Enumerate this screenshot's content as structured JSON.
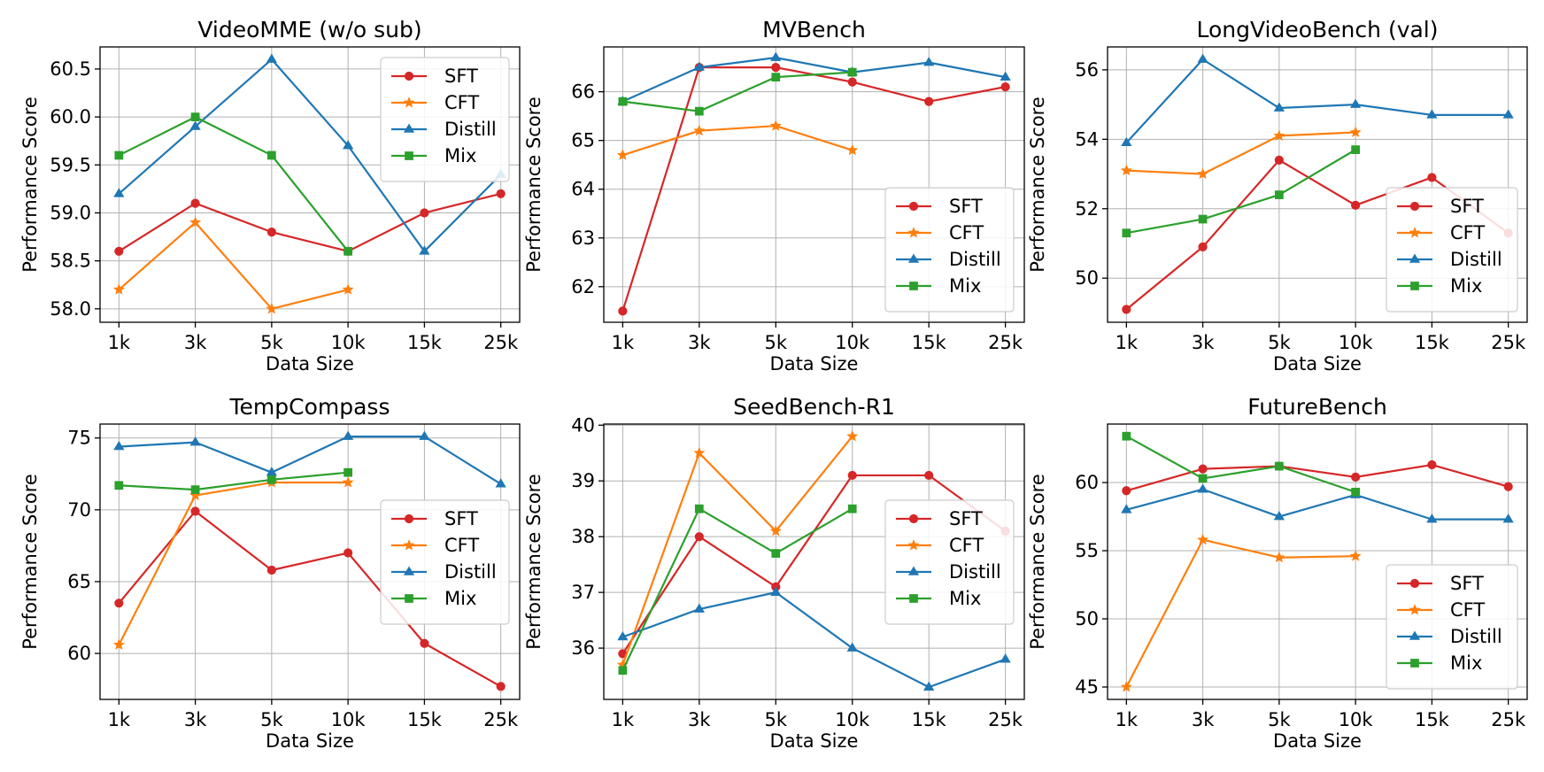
{
  "colors": {
    "SFT": "#d62728",
    "CFT": "#ff7f0e",
    "Distill": "#1f77b4",
    "Mix": "#2ca02c"
  },
  "markers": {
    "SFT": "circle",
    "CFT": "star",
    "Distill": "triangle",
    "Mix": "square"
  },
  "chart_data": [
    {
      "type": "line",
      "title": "VideoMME (w/o sub)",
      "xlabel": "Data Size",
      "ylabel": "Performance Score",
      "categories": [
        "1k",
        "3k",
        "5k",
        "10k",
        "15k",
        "25k"
      ],
      "ylim": [
        57.86,
        60.73
      ],
      "yticks": [
        58.0,
        58.5,
        59.0,
        59.5,
        60.0,
        60.5
      ],
      "ytick_labels": [
        "58.0",
        "58.5",
        "59.0",
        "59.5",
        "60.0",
        "60.5"
      ],
      "legend_position": "top-right",
      "series": [
        {
          "name": "SFT",
          "values": [
            58.6,
            59.1,
            58.8,
            58.6,
            59.0,
            59.2
          ]
        },
        {
          "name": "CFT",
          "values": [
            58.2,
            58.9,
            58.0,
            58.2,
            null,
            null
          ]
        },
        {
          "name": "Distill",
          "values": [
            59.2,
            59.9,
            60.6,
            59.7,
            58.6,
            59.4
          ]
        },
        {
          "name": "Mix",
          "values": [
            59.6,
            60.0,
            59.6,
            58.6,
            null,
            null
          ]
        }
      ]
    },
    {
      "type": "line",
      "title": "MVBench",
      "xlabel": "Data Size",
      "ylabel": "Performance Score",
      "categories": [
        "1k",
        "3k",
        "5k",
        "10k",
        "15k",
        "25k"
      ],
      "ylim": [
        61.27,
        66.92
      ],
      "yticks": [
        62,
        63,
        64,
        65,
        66
      ],
      "ytick_labels": [
        "62",
        "63",
        "64",
        "65",
        "66"
      ],
      "legend_position": "bottom-right",
      "series": [
        {
          "name": "SFT",
          "values": [
            61.5,
            66.5,
            66.5,
            66.2,
            65.8,
            66.1
          ]
        },
        {
          "name": "CFT",
          "values": [
            64.7,
            65.2,
            65.3,
            64.8,
            null,
            null
          ]
        },
        {
          "name": "Distill",
          "values": [
            65.8,
            66.5,
            66.7,
            66.4,
            66.6,
            66.3
          ]
        },
        {
          "name": "Mix",
          "values": [
            65.8,
            65.6,
            66.3,
            66.4,
            null,
            null
          ]
        }
      ]
    },
    {
      "type": "line",
      "title": "LongVideoBench (val)",
      "xlabel": "Data Size",
      "ylabel": "Performance Score",
      "categories": [
        "1k",
        "3k",
        "5k",
        "10k",
        "15k",
        "25k"
      ],
      "ylim": [
        48.73,
        56.66
      ],
      "yticks": [
        50,
        52,
        54,
        56
      ],
      "ytick_labels": [
        "50",
        "52",
        "54",
        "56"
      ],
      "legend_position": "lower-right",
      "series": [
        {
          "name": "SFT",
          "values": [
            49.1,
            50.9,
            53.4,
            52.1,
            52.9,
            51.3
          ]
        },
        {
          "name": "CFT",
          "values": [
            53.1,
            53.0,
            54.1,
            54.2,
            null,
            null
          ]
        },
        {
          "name": "Distill",
          "values": [
            53.9,
            56.3,
            54.9,
            55.0,
            54.7,
            54.7
          ]
        },
        {
          "name": "Mix",
          "values": [
            51.3,
            51.7,
            52.4,
            53.7,
            null,
            null
          ]
        }
      ]
    },
    {
      "type": "line",
      "title": "TempCompass",
      "xlabel": "Data Size",
      "ylabel": "Performance Score",
      "categories": [
        "1k",
        "3k",
        "5k",
        "10k",
        "15k",
        "25k"
      ],
      "ylim": [
        56.8,
        75.97
      ],
      "yticks": [
        60,
        65,
        70,
        75
      ],
      "ytick_labels": [
        "60",
        "65",
        "70",
        "75"
      ],
      "legend_position": "center-right",
      "series": [
        {
          "name": "SFT",
          "values": [
            63.5,
            69.9,
            65.8,
            67.0,
            60.7,
            57.7
          ]
        },
        {
          "name": "CFT",
          "values": [
            60.6,
            71.0,
            71.9,
            71.9,
            null,
            null
          ]
        },
        {
          "name": "Distill",
          "values": [
            74.4,
            74.7,
            72.6,
            75.1,
            75.1,
            71.8
          ]
        },
        {
          "name": "Mix",
          "values": [
            71.7,
            71.4,
            72.1,
            72.6,
            null,
            null
          ]
        }
      ]
    },
    {
      "type": "line",
      "title": "SeedBench-R1",
      "xlabel": "Data Size",
      "ylabel": "Performance Score",
      "categories": [
        "1k",
        "3k",
        "5k",
        "10k",
        "15k",
        "25k"
      ],
      "ylim": [
        35.08,
        40.02
      ],
      "yticks": [
        36,
        37,
        38,
        39,
        40
      ],
      "ytick_labels": [
        "36",
        "37",
        "38",
        "39",
        "40"
      ],
      "legend_position": "center-right",
      "series": [
        {
          "name": "SFT",
          "values": [
            35.9,
            38.0,
            37.1,
            39.1,
            39.1,
            38.1
          ]
        },
        {
          "name": "CFT",
          "values": [
            35.7,
            39.5,
            38.1,
            39.8,
            null,
            null
          ]
        },
        {
          "name": "Distill",
          "values": [
            36.2,
            36.7,
            37.0,
            36.0,
            35.3,
            35.8
          ]
        },
        {
          "name": "Mix",
          "values": [
            35.6,
            38.5,
            37.7,
            38.5,
            null,
            null
          ]
        }
      ]
    },
    {
      "type": "line",
      "title": "FutureBench",
      "xlabel": "Data Size",
      "ylabel": "Performance Score",
      "categories": [
        "1k",
        "3k",
        "5k",
        "10k",
        "15k",
        "25k"
      ],
      "ylim": [
        44.09,
        64.29
      ],
      "yticks": [
        45,
        50,
        55,
        60
      ],
      "ytick_labels": [
        "45",
        "50",
        "55",
        "60"
      ],
      "legend_position": "lower-right",
      "series": [
        {
          "name": "SFT",
          "values": [
            59.4,
            61.0,
            61.2,
            60.4,
            61.3,
            59.7
          ]
        },
        {
          "name": "CFT",
          "values": [
            45.0,
            55.8,
            54.5,
            54.6,
            null,
            null
          ]
        },
        {
          "name": "Distill",
          "values": [
            58.0,
            59.5,
            57.5,
            59.1,
            57.3,
            57.3
          ]
        },
        {
          "name": "Mix",
          "values": [
            63.4,
            60.3,
            61.2,
            59.3,
            null,
            null
          ]
        }
      ]
    }
  ]
}
